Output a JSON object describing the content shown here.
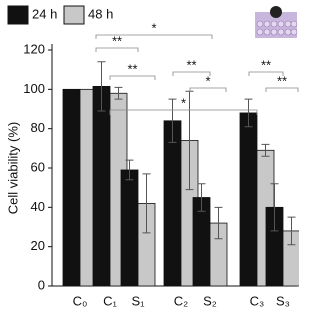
{
  "chart_data": {
    "type": "bar",
    "y_label": "Cell viability (%)",
    "categories": [
      "C₀",
      "C₁",
      "S₁",
      "C₂",
      "S₂",
      "C₃",
      "S₃"
    ],
    "series": [
      {
        "name": "24 h",
        "color": "#111111",
        "values": [
          100,
          101.5,
          59,
          84,
          45,
          88,
          40
        ],
        "errors": [
          0,
          12.5,
          5,
          11,
          7,
          7,
          12
        ]
      },
      {
        "name": "48 h",
        "color": "#c8c8c8",
        "values": [
          100,
          98,
          42,
          74,
          32,
          69,
          28
        ],
        "errors": [
          0,
          3,
          15,
          25,
          8,
          3,
          7
        ]
      }
    ],
    "ylim": [
      0,
      120
    ],
    "yticks": [
      0,
      20,
      40,
      60,
      80,
      100,
      120
    ],
    "legend": "top-left",
    "annotations": [
      "*",
      "**",
      "**",
      "*",
      "**",
      "*",
      "**",
      "**"
    ]
  }
}
